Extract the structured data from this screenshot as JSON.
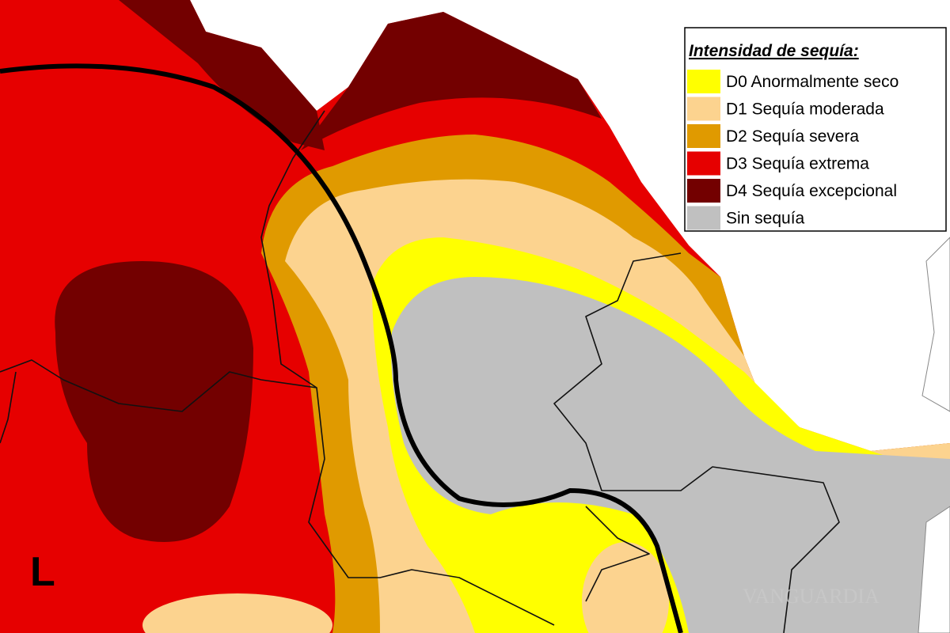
{
  "legend": {
    "title": "Intensidad de sequía:",
    "items": [
      {
        "label": "D0 Anormalmente seco",
        "color": "#ffff00"
      },
      {
        "label": "D1 Sequía moderada",
        "color": "#fcd38f"
      },
      {
        "label": "D2 Sequía severa",
        "color": "#e09a00"
      },
      {
        "label": "D3 Sequía extrema",
        "color": "#e60000"
      },
      {
        "label": "D4 Sequía excepcional",
        "color": "#730000"
      },
      {
        "label": "Sin sequía",
        "color": "#c0c0c0"
      }
    ]
  },
  "labels": {
    "region": "L",
    "watermark": "VANGUARDIA"
  }
}
